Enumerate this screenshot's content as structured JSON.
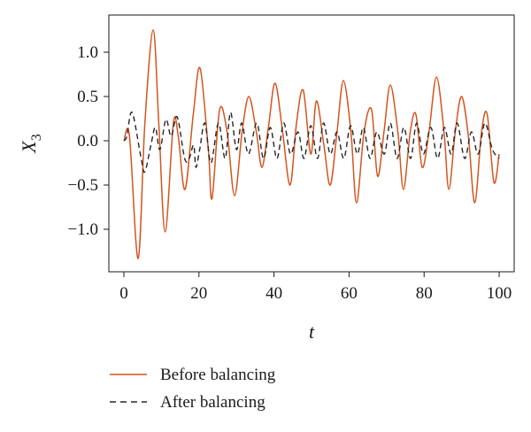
{
  "chart_data": {
    "type": "line",
    "xlabel": "t",
    "ylabel": "X",
    "ylabel_subscript": "3",
    "xlim": [
      -4,
      104
    ],
    "ylim": [
      -1.48,
      1.42
    ],
    "xticks": [
      0,
      20,
      40,
      60,
      80,
      100
    ],
    "yticks": [
      1.0,
      0.5,
      0.0,
      -0.5,
      -1.0
    ],
    "xtick_labels": [
      "0",
      "20",
      "40",
      "60",
      "80",
      "100"
    ],
    "ytick_labels": [
      "1.0",
      "0.5",
      "0.0",
      "−0.5",
      "−1.0"
    ],
    "grid": false,
    "legend_placement": "bottom-left, below plot",
    "series": [
      {
        "name": "Before balancing",
        "color": "#d4541f",
        "style": "solid",
        "points": [
          [
            0,
            0
          ],
          [
            1.5,
            0.05
          ],
          [
            3.8,
            -1.33
          ],
          [
            5.6,
            0.2
          ],
          [
            7.8,
            1.25
          ],
          [
            9.3,
            0.2
          ],
          [
            11,
            -1.03
          ],
          [
            13.2,
            0.2
          ],
          [
            14.5,
            0.05
          ],
          [
            16.3,
            -0.55
          ],
          [
            18.5,
            0.3
          ],
          [
            20.3,
            0.82
          ],
          [
            22.5,
            -0.1
          ],
          [
            23.5,
            -0.65
          ],
          [
            25.5,
            0.35
          ],
          [
            27.5,
            0.1
          ],
          [
            29.5,
            -0.62
          ],
          [
            31.5,
            0.1
          ],
          [
            33.3,
            0.5
          ],
          [
            35.3,
            0.1
          ],
          [
            36.8,
            -0.3
          ],
          [
            38.5,
            0.15
          ],
          [
            40.3,
            0.65
          ],
          [
            42.3,
            0.1
          ],
          [
            44.3,
            -0.5
          ],
          [
            46,
            0.2
          ],
          [
            47.8,
            0.57
          ],
          [
            49.8,
            -0.15
          ],
          [
            51.3,
            0.45
          ],
          [
            53.3,
            -0.05
          ],
          [
            55,
            -0.5
          ],
          [
            56.8,
            0.1
          ],
          [
            58.5,
            0.68
          ],
          [
            60.5,
            0.1
          ],
          [
            62,
            -0.7
          ],
          [
            64,
            0.1
          ],
          [
            66,
            0.35
          ],
          [
            67.6,
            -0.4
          ],
          [
            69.3,
            0.1
          ],
          [
            71,
            0.63
          ],
          [
            73,
            0.1
          ],
          [
            74.5,
            -0.55
          ],
          [
            76.3,
            0.1
          ],
          [
            77.8,
            0.3
          ],
          [
            79.5,
            -0.3
          ],
          [
            81.3,
            0.1
          ],
          [
            83.3,
            0.72
          ],
          [
            85.3,
            0.1
          ],
          [
            86.6,
            -0.55
          ],
          [
            88.3,
            0.1
          ],
          [
            90,
            0.5
          ],
          [
            91.8,
            0.05
          ],
          [
            93.5,
            -0.7
          ],
          [
            95.3,
            0.1
          ],
          [
            96.8,
            0.3
          ],
          [
            98.6,
            -0.47
          ],
          [
            100,
            -0.15
          ]
        ]
      },
      {
        "name": "After balancing",
        "color": "#262626",
        "style": "dashed",
        "points": [
          [
            0,
            0
          ],
          [
            0.8,
            0.05
          ],
          [
            2.2,
            0.32
          ],
          [
            4.6,
            -0.2
          ],
          [
            5.6,
            -0.35
          ],
          [
            7.2,
            -0.05
          ],
          [
            8.4,
            0.15
          ],
          [
            9.6,
            -0.1
          ],
          [
            11.2,
            0.24
          ],
          [
            12.6,
            0.05
          ],
          [
            14.2,
            0.27
          ],
          [
            16.2,
            -0.2
          ],
          [
            17.4,
            -0.2
          ],
          [
            18.6,
            -0.05
          ],
          [
            19.2,
            -0.3
          ],
          [
            20.2,
            -0.1
          ],
          [
            21.6,
            0.2
          ],
          [
            23.2,
            -0.25
          ],
          [
            25.2,
            0.2
          ],
          [
            27,
            -0.2
          ],
          [
            28.4,
            0.32
          ],
          [
            30,
            -0.1
          ],
          [
            31.4,
            0.2
          ],
          [
            33.2,
            -0.15
          ],
          [
            35.4,
            0.2
          ],
          [
            37.2,
            -0.2
          ],
          [
            39,
            0.15
          ],
          [
            40.8,
            -0.2
          ],
          [
            42.6,
            0.2
          ],
          [
            44.4,
            -0.15
          ],
          [
            46.4,
            0.1
          ],
          [
            48,
            -0.2
          ],
          [
            49.8,
            0.17
          ],
          [
            51.6,
            -0.2
          ],
          [
            53.2,
            0.2
          ],
          [
            55,
            -0.15
          ],
          [
            56.8,
            0.1
          ],
          [
            58.6,
            -0.2
          ],
          [
            60.4,
            0.17
          ],
          [
            62.2,
            -0.15
          ],
          [
            63.8,
            0.15
          ],
          [
            65.6,
            -0.2
          ],
          [
            67.4,
            0.1
          ],
          [
            69.4,
            -0.15
          ],
          [
            71,
            0.2
          ],
          [
            72.8,
            -0.2
          ],
          [
            74.6,
            0.15
          ],
          [
            76.4,
            -0.2
          ],
          [
            78,
            0.2
          ],
          [
            79.8,
            -0.15
          ],
          [
            81.8,
            0.15
          ],
          [
            83.6,
            -0.2
          ],
          [
            85.4,
            0.15
          ],
          [
            87.2,
            -0.15
          ],
          [
            88.8,
            0.2
          ],
          [
            90.8,
            -0.2
          ],
          [
            92.6,
            0.1
          ],
          [
            94.4,
            -0.15
          ],
          [
            96.2,
            0.2
          ],
          [
            98.2,
            -0.1
          ],
          [
            100,
            -0.2
          ]
        ]
      }
    ]
  }
}
